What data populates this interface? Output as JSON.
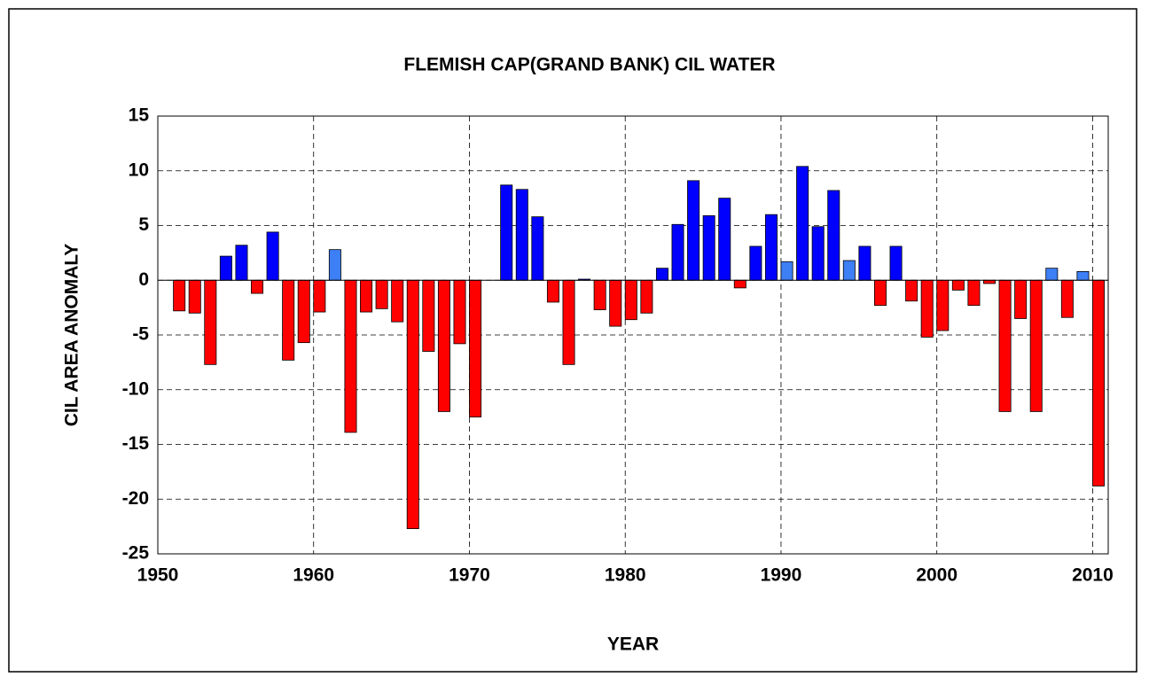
{
  "chart_data": {
    "type": "bar",
    "title": "FLEMISH CAP(GRAND BANK) CIL WATER",
    "x_label": "YEAR",
    "y_label": "CIL AREA ANOMALY",
    "x": [
      1951,
      1952,
      1953,
      1954,
      1955,
      1956,
      1957,
      1958,
      1959,
      1960,
      1961,
      1962,
      1963,
      1964,
      1965,
      1966,
      1967,
      1968,
      1969,
      1970,
      1972,
      1973,
      1974,
      1975,
      1976,
      1977,
      1978,
      1979,
      1980,
      1981,
      1982,
      1983,
      1984,
      1985,
      1986,
      1987,
      1988,
      1989,
      1990,
      1991,
      1992,
      1993,
      1994,
      1995,
      1996,
      1997,
      1998,
      1999,
      2000,
      2001,
      2002,
      2003,
      2004,
      2005,
      2006,
      2007,
      2008,
      2009,
      2010
    ],
    "values": [
      -2.8,
      -3.0,
      -7.7,
      2.2,
      3.2,
      -1.2,
      4.4,
      -7.3,
      -5.7,
      -2.9,
      2.8,
      -13.9,
      -2.9,
      -2.6,
      -3.8,
      -22.7,
      -6.5,
      -12.0,
      -5.8,
      -12.5,
      8.7,
      8.3,
      5.8,
      -2.0,
      -7.7,
      0.1,
      -2.7,
      -4.2,
      -3.6,
      -3.0,
      1.1,
      5.1,
      9.1,
      5.9,
      7.5,
      -0.7,
      3.1,
      6.0,
      1.7,
      10.4,
      4.9,
      8.2,
      1.8,
      3.1,
      -2.3,
      3.1,
      -1.9,
      -5.2,
      -4.6,
      -0.9,
      -2.3,
      -0.3,
      -12.0,
      -3.5,
      -12.0,
      1.1,
      -3.4,
      0.8,
      -18.8
    ],
    "colors": [
      "#ff0000",
      "#ff0000",
      "#ff0000",
      "#0000ff",
      "#0000ff",
      "#ff0000",
      "#0000ff",
      "#ff0000",
      "#ff0000",
      "#ff0000",
      "#3d7ff5",
      "#ff0000",
      "#ff0000",
      "#ff0000",
      "#ff0000",
      "#ff0000",
      "#ff0000",
      "#ff0000",
      "#ff0000",
      "#ff0000",
      "#0000ff",
      "#0000ff",
      "#0000ff",
      "#ff0000",
      "#ff0000",
      "#0000ff",
      "#ff0000",
      "#ff0000",
      "#ff0000",
      "#ff0000",
      "#0000ff",
      "#0000ff",
      "#0000ff",
      "#0000ff",
      "#0000ff",
      "#ff0000",
      "#0000ff",
      "#0000ff",
      "#3d7ff5",
      "#0000ff",
      "#0000ff",
      "#0000ff",
      "#3d7ff5",
      "#0000ff",
      "#ff0000",
      "#0000ff",
      "#ff0000",
      "#ff0000",
      "#ff0000",
      "#ff0000",
      "#ff0000",
      "#ff0000",
      "#ff0000",
      "#ff0000",
      "#ff0000",
      "#3d7ff5",
      "#ff0000",
      "#3d7ff5",
      "#ff0000"
    ],
    "xlim": [
      1950,
      2011
    ],
    "xticks": [
      1950,
      1960,
      1970,
      1980,
      1990,
      2000,
      2010
    ],
    "ylim": [
      -25,
      15
    ],
    "yticks": [
      -25,
      -20,
      -15,
      -10,
      -5,
      0,
      5,
      10,
      15
    ],
    "grid": true
  }
}
